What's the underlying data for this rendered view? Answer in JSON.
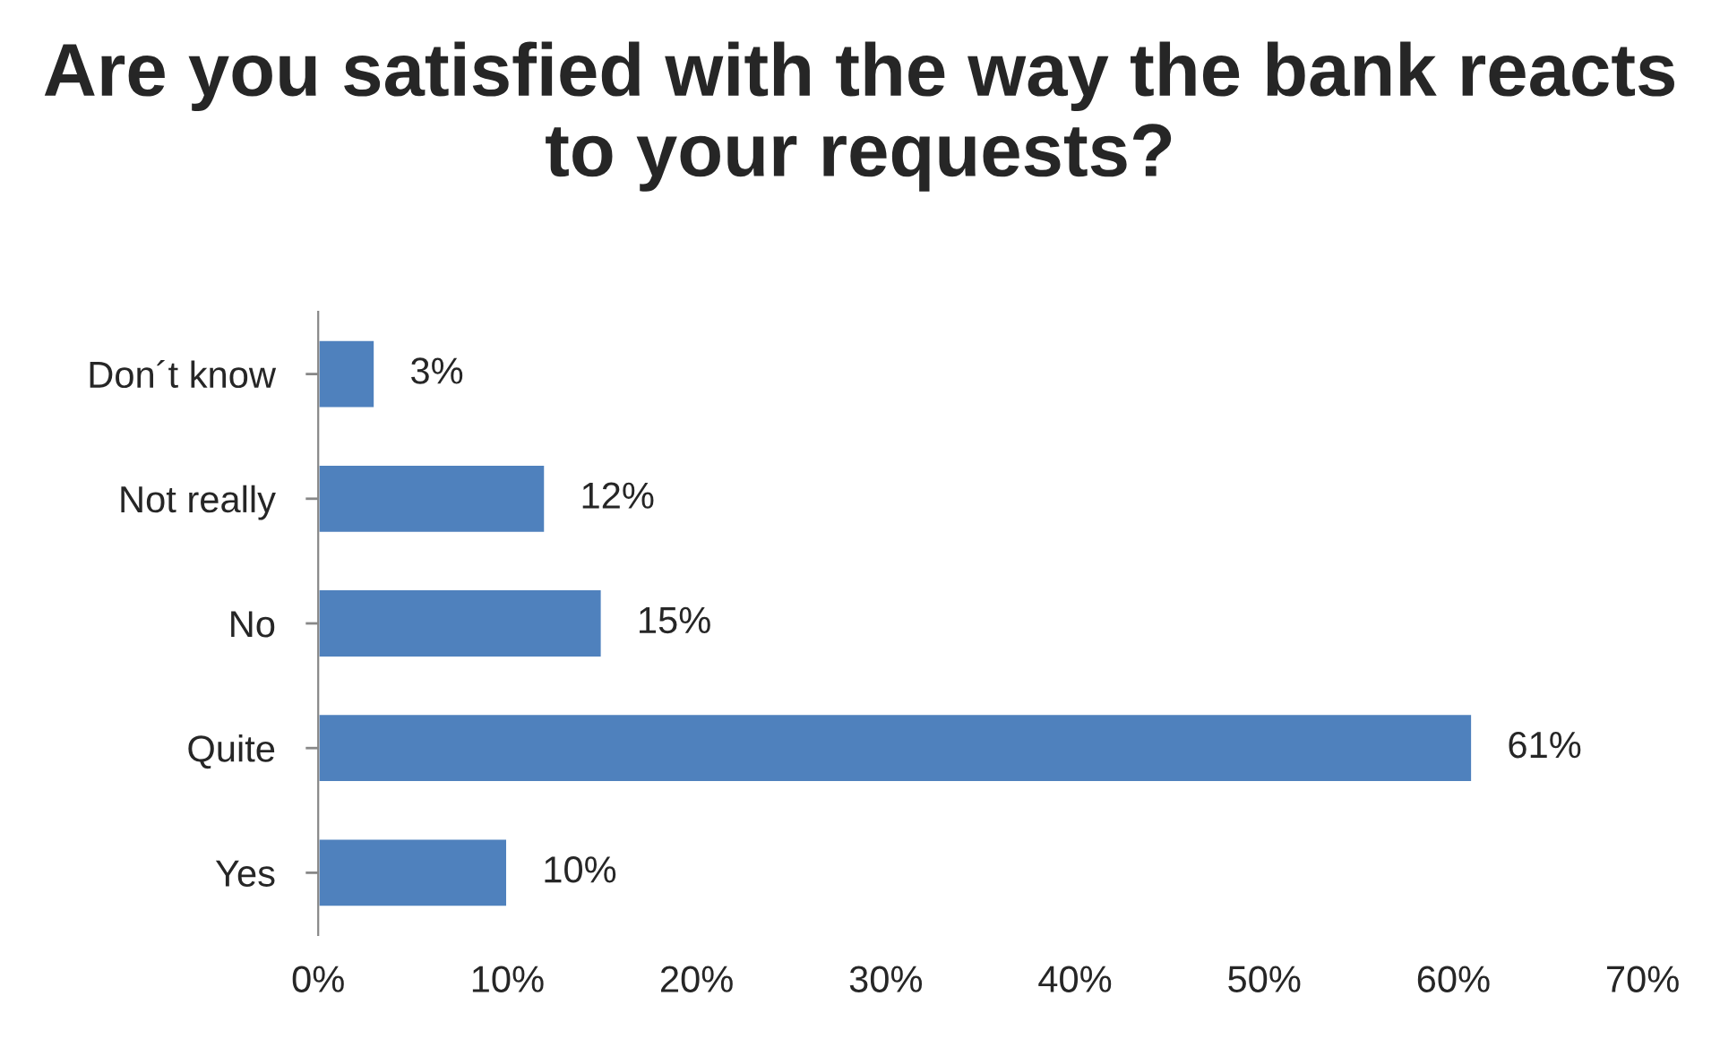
{
  "chart_data": {
    "type": "bar",
    "orientation": "horizontal",
    "title": "Are you satisfied with the way the bank reacts to your requests?",
    "categories": [
      "Don´t know",
      "Not really",
      "No",
      "Quite",
      "Yes"
    ],
    "values": [
      3,
      12,
      15,
      61,
      10
    ],
    "value_labels": [
      "3%",
      "12%",
      "15%",
      "61%",
      "10%"
    ],
    "color": "#4f81bd",
    "xlim": [
      0,
      70
    ],
    "xticks": [
      {
        "value": 0,
        "label": "0%"
      },
      {
        "value": 10,
        "label": "10%"
      },
      {
        "value": 20,
        "label": "20%"
      },
      {
        "value": 30,
        "label": "30%"
      },
      {
        "value": 40,
        "label": "40%"
      },
      {
        "value": 50,
        "label": "50%"
      },
      {
        "value": 60,
        "label": "60%"
      },
      {
        "value": 70,
        "label": "70%"
      }
    ],
    "grid": false,
    "legend": false
  }
}
